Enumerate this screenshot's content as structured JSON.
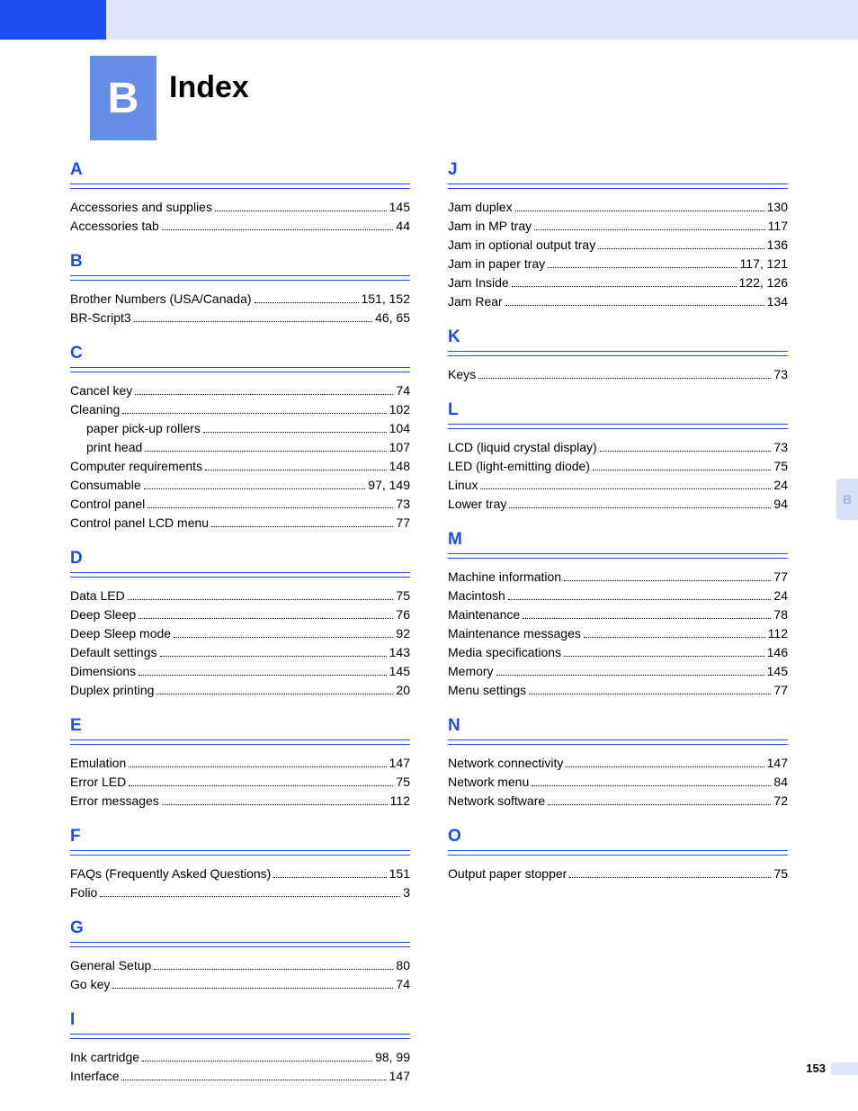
{
  "chapter_letter": "B",
  "page_title": "Index",
  "page_number": "153",
  "side_tab": "B",
  "colors": {
    "banner_bg": "#dde4fb",
    "banner_left": "#1a4ef0",
    "chapter_block": "#668de8",
    "heading_blue": "#1a4ef0",
    "text": "#000000",
    "side_tab_bg": "#d8e0f7",
    "side_tab_fg": "#9fb3ed"
  },
  "columns": [
    [
      {
        "letter": "A",
        "entries": [
          {
            "label": "Accessories and supplies",
            "pages": "145"
          },
          {
            "label": "Accessories tab",
            "pages": "44"
          }
        ]
      },
      {
        "letter": "B",
        "entries": [
          {
            "label": "Brother Numbers (USA/Canada)",
            "pages": "151, 152"
          },
          {
            "label": "BR-Script3",
            "pages": "46, 65"
          }
        ]
      },
      {
        "letter": "C",
        "entries": [
          {
            "label": "Cancel key",
            "pages": "74"
          },
          {
            "label": "Cleaning",
            "pages": "102"
          },
          {
            "label": "paper pick-up rollers",
            "pages": "104",
            "indent": true
          },
          {
            "label": "print head",
            "pages": "107",
            "indent": true
          },
          {
            "label": "Computer requirements",
            "pages": "148"
          },
          {
            "label": "Consumable",
            "pages": "97, 149"
          },
          {
            "label": "Control panel",
            "pages": "73"
          },
          {
            "label": "Control panel LCD menu",
            "pages": "77"
          }
        ]
      },
      {
        "letter": "D",
        "entries": [
          {
            "label": "Data LED",
            "pages": "75"
          },
          {
            "label": "Deep Sleep",
            "pages": "76"
          },
          {
            "label": "Deep Sleep mode",
            "pages": "92"
          },
          {
            "label": "Default settings",
            "pages": "143"
          },
          {
            "label": "Dimensions",
            "pages": "145"
          },
          {
            "label": "Duplex printing",
            "pages": "20"
          }
        ]
      },
      {
        "letter": "E",
        "entries": [
          {
            "label": "Emulation",
            "pages": "147"
          },
          {
            "label": "Error LED",
            "pages": "75"
          },
          {
            "label": "Error messages",
            "pages": "112"
          }
        ]
      },
      {
        "letter": "F",
        "entries": [
          {
            "label": "FAQs (Frequently Asked Questions)",
            "pages": "151"
          },
          {
            "label": "Folio",
            "pages": "3"
          }
        ]
      },
      {
        "letter": "G",
        "entries": [
          {
            "label": "General Setup",
            "pages": "80"
          },
          {
            "label": "Go key",
            "pages": "74"
          }
        ]
      },
      {
        "letter": "I",
        "entries": [
          {
            "label": "Ink cartridge",
            "pages": "98, 99"
          },
          {
            "label": "Interface",
            "pages": "147"
          }
        ]
      }
    ],
    [
      {
        "letter": "J",
        "entries": [
          {
            "label": "Jam duplex",
            "pages": "130"
          },
          {
            "label": "Jam in MP tray",
            "pages": "117"
          },
          {
            "label": "Jam in optional output tray",
            "pages": "136"
          },
          {
            "label": "Jam in paper tray",
            "pages": "117, 121"
          },
          {
            "label": "Jam Inside",
            "pages": "122, 126"
          },
          {
            "label": "Jam Rear",
            "pages": "134"
          }
        ]
      },
      {
        "letter": "K",
        "entries": [
          {
            "label": "Keys",
            "pages": "73"
          }
        ]
      },
      {
        "letter": "L",
        "entries": [
          {
            "label": "LCD (liquid crystal display)",
            "pages": "73"
          },
          {
            "label": "LED (light-emitting diode)",
            "pages": "75"
          },
          {
            "label": "Linux",
            "pages": "24"
          },
          {
            "label": "Lower tray",
            "pages": "94"
          }
        ]
      },
      {
        "letter": "M",
        "entries": [
          {
            "label": "Machine information",
            "pages": "77"
          },
          {
            "label": "Macintosh",
            "pages": "24"
          },
          {
            "label": "Maintenance",
            "pages": "78"
          },
          {
            "label": "Maintenance messages",
            "pages": "112"
          },
          {
            "label": "Media specifications",
            "pages": "146"
          },
          {
            "label": "Memory",
            "pages": "145"
          },
          {
            "label": "Menu settings",
            "pages": "77"
          }
        ]
      },
      {
        "letter": "N",
        "entries": [
          {
            "label": "Network connectivity",
            "pages": "147"
          },
          {
            "label": "Network menu",
            "pages": "84"
          },
          {
            "label": "Network software",
            "pages": "72"
          }
        ]
      },
      {
        "letter": "O",
        "entries": [
          {
            "label": "Output paper stopper",
            "pages": "75"
          }
        ]
      }
    ]
  ]
}
